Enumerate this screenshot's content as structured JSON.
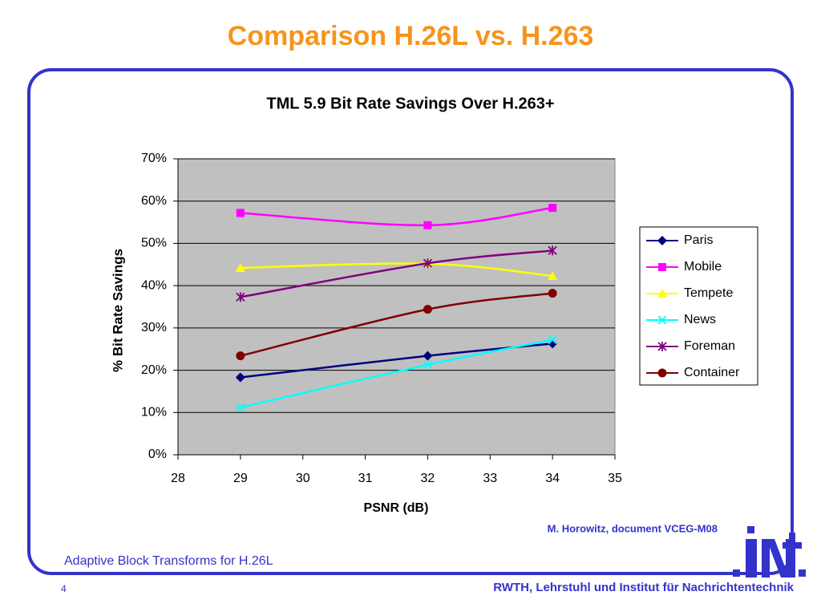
{
  "slide": {
    "title": "Comparison H.26L vs. H.263",
    "source": "M. Horowitz, document VCEG-M08",
    "footer": "Adaptive Block Transforms for H.26L",
    "page": "4",
    "institute": "RWTH, Lehrstuhl und Institut für Nachrichtentechnik"
  },
  "chart_data": {
    "type": "line",
    "title": "TML 5.9 Bit Rate Savings Over H.263+",
    "x_label": "PSNR (dB)",
    "y_label": "% Bit Rate Savings",
    "x": [
      29,
      32,
      34
    ],
    "series": [
      {
        "name": "Paris",
        "color": "#000080",
        "marker": "diamond",
        "values": [
          18.3,
          23.4,
          26.3
        ]
      },
      {
        "name": "Mobile",
        "color": "#ff00ff",
        "marker": "square",
        "values": [
          57.2,
          54.3,
          58.4
        ]
      },
      {
        "name": "Tempete",
        "color": "#ffff00",
        "marker": "triangle",
        "values": [
          44.2,
          45.2,
          42.3
        ]
      },
      {
        "name": "News",
        "color": "#00ffff",
        "marker": "x",
        "values": [
          11.2,
          21.3,
          27.2
        ]
      },
      {
        "name": "Foreman",
        "color": "#800080",
        "marker": "star",
        "values": [
          37.3,
          45.3,
          48.3
        ]
      },
      {
        "name": "Container",
        "color": "#800000",
        "marker": "circle",
        "values": [
          23.4,
          34.4,
          38.2
        ]
      }
    ],
    "xlim": [
      28,
      35
    ],
    "xticks": [
      28,
      29,
      30,
      31,
      32,
      33,
      34,
      35
    ],
    "ylim": [
      0,
      70
    ],
    "yticks": [
      {
        "value": 0,
        "label": "0%"
      },
      {
        "value": 10,
        "label": "10%"
      },
      {
        "value": 20,
        "label": "20%"
      },
      {
        "value": 30,
        "label": "30%"
      },
      {
        "value": 40,
        "label": "40%"
      },
      {
        "value": 50,
        "label": "50%"
      },
      {
        "value": 60,
        "label": "60%"
      },
      {
        "value": 70,
        "label": "70%"
      }
    ],
    "grid": true,
    "legend": "right"
  }
}
